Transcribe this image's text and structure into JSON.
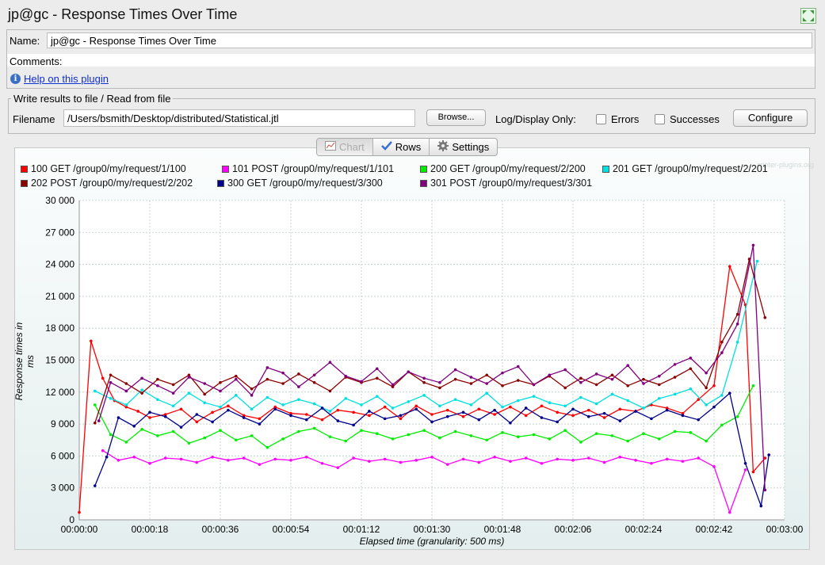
{
  "window": {
    "title": "jp@gc - Response Times Over Time"
  },
  "form": {
    "name_label": "Name:",
    "name_value": "jp@gc - Response Times Over Time",
    "comments_label": "Comments:",
    "help_link": "Help on this plugin"
  },
  "file_panel": {
    "legend": "Write results to file / Read from file",
    "filename_label": "Filename",
    "filename_value": "/Users/bsmith/Desktop/distributed/Statistical.jtl",
    "browse_label": "Browse...",
    "log_display_label": "Log/Display Only:",
    "errors_label": "Errors",
    "successes_label": "Successes",
    "configure_label": "Configure"
  },
  "tabs": [
    {
      "label": "Chart",
      "icon": "chart-icon",
      "selected": true
    },
    {
      "label": "Rows",
      "icon": "checkmark-icon",
      "selected": false
    },
    {
      "label": "Settings",
      "icon": "gear-icon",
      "selected": false
    }
  ],
  "watermark": "jmeter-plugins.org",
  "chart_data": {
    "type": "line",
    "title": "",
    "xlabel": "Elapsed time (granularity: 500 ms)",
    "ylabel": "Response times in ms",
    "ylim": [
      0,
      30000
    ],
    "yticks": [
      "0",
      "3 000",
      "6 000",
      "9 000",
      "12 000",
      "15 000",
      "18 000",
      "21 000",
      "24 000",
      "27 000",
      "30 000"
    ],
    "xlim": [
      "00:00:00",
      "00:03:00"
    ],
    "xticks": [
      "00:00:00",
      "00:00:18",
      "00:00:36",
      "00:00:54",
      "00:01:12",
      "00:01:30",
      "00:01:48",
      "00:02:06",
      "00:02:24",
      "00:02:42",
      "00:03:00"
    ],
    "grid": true,
    "legend_position": "top",
    "series": [
      {
        "name": "100 GET /group0/my/request/1/100",
        "color": "#ff0000",
        "x": [
          0,
          3,
          6,
          9,
          12,
          15,
          18,
          22,
          26,
          30,
          34,
          38,
          42,
          46,
          50,
          54,
          58,
          62,
          66,
          70,
          74,
          78,
          82,
          86,
          90,
          94,
          98,
          102,
          106,
          110,
          114,
          118,
          122,
          126,
          130,
          134,
          138,
          142,
          146,
          150,
          154,
          158,
          162,
          166,
          170,
          172,
          175
        ],
        "y": [
          700,
          16800,
          13300,
          11200,
          10600,
          10200,
          9600,
          9900,
          10400,
          9200,
          10100,
          10700,
          9800,
          9500,
          10600,
          10000,
          9900,
          9400,
          10300,
          10100,
          9800,
          10600,
          9500,
          10700,
          9900,
          10300,
          9700,
          10400,
          9900,
          10600,
          9800,
          10700,
          10100,
          9800,
          10300,
          9600,
          10400,
          10200,
          10800,
          10500,
          10000,
          11300,
          12600,
          23800,
          20200,
          4500,
          5800
        ]
      },
      {
        "name": "101 POST /group0/my/request/1/101",
        "color": "#ff00ff",
        "x": [
          6,
          10,
          14,
          18,
          22,
          26,
          30,
          34,
          38,
          42,
          46,
          50,
          54,
          58,
          62,
          66,
          70,
          74,
          78,
          82,
          86,
          90,
          94,
          98,
          102,
          106,
          110,
          114,
          118,
          122,
          126,
          130,
          134,
          138,
          142,
          146,
          150,
          154,
          158,
          162,
          166,
          170
        ],
        "y": [
          6500,
          5600,
          5900,
          5300,
          5800,
          5700,
          5400,
          5900,
          5600,
          5800,
          5200,
          5700,
          5600,
          5900,
          5300,
          4900,
          5800,
          5500,
          5700,
          5400,
          5600,
          5900,
          5200,
          5700,
          5400,
          5900,
          5500,
          5800,
          5300,
          5700,
          5600,
          5800,
          5400,
          5900,
          5600,
          5300,
          5700,
          5500,
          5800,
          5000,
          700,
          4700
        ]
      },
      {
        "name": "200 GET /group0/my/request/2/200",
        "color": "#00ee00",
        "x": [
          4,
          8,
          12,
          16,
          20,
          24,
          28,
          32,
          36,
          40,
          44,
          48,
          52,
          56,
          60,
          64,
          68,
          72,
          76,
          80,
          84,
          88,
          92,
          96,
          100,
          104,
          108,
          112,
          116,
          120,
          124,
          128,
          132,
          136,
          140,
          144,
          148,
          152,
          156,
          160,
          164,
          168,
          172
        ],
        "y": [
          10800,
          8000,
          7300,
          8500,
          7900,
          8300,
          7200,
          7700,
          8400,
          7500,
          7900,
          6800,
          7600,
          8300,
          8600,
          7800,
          7400,
          8400,
          8100,
          7600,
          8000,
          8400,
          7700,
          8300,
          7900,
          7500,
          8200,
          7800,
          8000,
          7600,
          8400,
          7300,
          8100,
          7900,
          7400,
          8100,
          7600,
          8300,
          8200,
          7400,
          8900,
          9700,
          12600
        ]
      },
      {
        "name": "201 GET /group0/my/request/2/201",
        "color": "#00e0e0",
        "x": [
          4,
          8,
          12,
          16,
          20,
          24,
          28,
          32,
          36,
          40,
          44,
          48,
          52,
          56,
          60,
          64,
          68,
          72,
          76,
          80,
          84,
          88,
          92,
          96,
          100,
          104,
          108,
          112,
          116,
          120,
          124,
          128,
          132,
          136,
          140,
          144,
          148,
          152,
          156,
          160,
          164,
          168,
          173
        ],
        "y": [
          12100,
          11400,
          10800,
          12200,
          11300,
          10700,
          11900,
          11000,
          10600,
          11700,
          10400,
          11500,
          10800,
          11300,
          10900,
          10200,
          11400,
          10800,
          11600,
          10500,
          11100,
          11700,
          10700,
          11300,
          10800,
          11900,
          10600,
          11200,
          11600,
          11000,
          10700,
          11500,
          10900,
          11800,
          11200,
          10500,
          11400,
          11800,
          12300,
          10800,
          11700,
          16700,
          24300
        ]
      },
      {
        "name": "202 POST /group0/my/request/2/202",
        "color": "#8b0000",
        "x": [
          4,
          8,
          12,
          16,
          20,
          24,
          28,
          32,
          36,
          40,
          44,
          48,
          52,
          56,
          60,
          64,
          68,
          72,
          76,
          80,
          84,
          88,
          92,
          96,
          100,
          104,
          108,
          112,
          116,
          120,
          124,
          128,
          132,
          136,
          140,
          144,
          148,
          152,
          156,
          160,
          164,
          168,
          171,
          175
        ],
        "y": [
          9100,
          13600,
          12800,
          11900,
          13200,
          12700,
          13600,
          11800,
          12900,
          13500,
          12300,
          13200,
          12800,
          13700,
          12900,
          12100,
          13400,
          12900,
          13300,
          12500,
          13900,
          12900,
          12400,
          13200,
          12800,
          13600,
          12600,
          13100,
          12700,
          13500,
          12400,
          13300,
          12700,
          13600,
          12600,
          13200,
          12700,
          13400,
          14200,
          12400,
          16700,
          19300,
          24500,
          19000
        ]
      },
      {
        "name": "300 GET /group0/my/request/3/300",
        "color": "#00008b",
        "x": [
          4,
          7,
          10,
          14,
          18,
          22,
          26,
          30,
          34,
          38,
          42,
          46,
          50,
          54,
          58,
          62,
          66,
          70,
          74,
          78,
          82,
          86,
          90,
          94,
          98,
          102,
          106,
          110,
          114,
          118,
          122,
          126,
          130,
          134,
          138,
          142,
          146,
          150,
          154,
          158,
          162,
          166,
          170,
          174,
          176
        ],
        "y": [
          3200,
          5900,
          9600,
          8800,
          10100,
          9700,
          8700,
          9900,
          9200,
          10300,
          9600,
          9000,
          10400,
          9800,
          9400,
          10500,
          9300,
          8900,
          10200,
          9500,
          9800,
          10400,
          9200,
          9700,
          10100,
          9400,
          10300,
          9100,
          10500,
          9600,
          9200,
          10400,
          9700,
          10000,
          9300,
          10200,
          9500,
          10300,
          9800,
          9400,
          10600,
          11900,
          5300,
          1300,
          6100
        ]
      },
      {
        "name": "301 POST /group0/my/request/3/301",
        "color": "#800080",
        "x": [
          5,
          8,
          12,
          16,
          20,
          24,
          28,
          32,
          36,
          40,
          44,
          48,
          52,
          56,
          60,
          64,
          68,
          72,
          76,
          80,
          84,
          88,
          92,
          96,
          100,
          104,
          108,
          112,
          116,
          120,
          124,
          128,
          132,
          136,
          140,
          144,
          148,
          152,
          156,
          160,
          164,
          168,
          172,
          175
        ],
        "y": [
          9300,
          12900,
          12100,
          13300,
          12600,
          11900,
          13400,
          12800,
          12100,
          13200,
          11700,
          14300,
          13800,
          12500,
          13600,
          14800,
          13500,
          13000,
          14200,
          12700,
          13900,
          13300,
          12900,
          14100,
          13400,
          12800,
          13800,
          14400,
          12700,
          13600,
          14100,
          12900,
          13700,
          13200,
          14500,
          12800,
          13500,
          14600,
          15200,
          13800,
          15700,
          18400,
          25800,
          2800
        ]
      }
    ]
  }
}
